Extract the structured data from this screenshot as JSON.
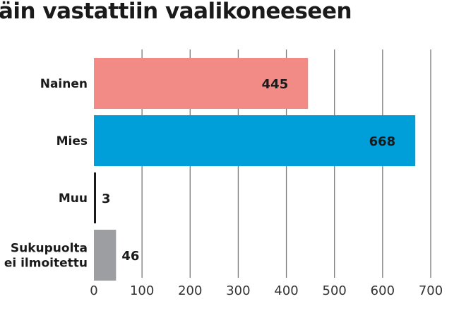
{
  "chart_data": {
    "type": "bar",
    "orientation": "horizontal",
    "title": "äin vastattiin vaalikoneeseen",
    "categories": [
      [
        "Nainen"
      ],
      [
        "Mies"
      ],
      [
        "Muu"
      ],
      [
        "Sukupuolta",
        "ei ilmoitettu"
      ]
    ],
    "values": [
      445,
      668,
      3,
      46
    ],
    "colors": [
      "#f28a86",
      "#009fd9",
      "#1a1a1a",
      "#9d9ea2"
    ],
    "xlim": [
      0,
      700
    ],
    "xticks": [
      0,
      100,
      200,
      300,
      400,
      500,
      600,
      700
    ],
    "grid": true,
    "data_labels": "values"
  }
}
